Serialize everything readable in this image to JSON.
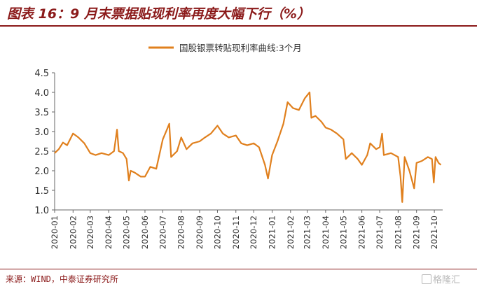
{
  "header": {
    "title": "图表 16：9 月末票据贴现利率再度大幅下行（%）"
  },
  "footer": {
    "source": "来源：WIND，中泰证券研究所",
    "watermark": "格隆汇"
  },
  "colors": {
    "line": "#e0801e",
    "accent": "#8b1a1a",
    "axis": "#666666"
  },
  "chart_data": {
    "type": "line",
    "title": "",
    "xlabel": "",
    "ylabel": "",
    "ylim": [
      1.0,
      4.5
    ],
    "yticks": [
      "1.0",
      "1.5",
      "2.0",
      "2.5",
      "3.0",
      "3.5",
      "4.0",
      "4.5"
    ],
    "xticks": [
      "2020-01",
      "2020-02",
      "2020-03",
      "2020-04",
      "2020-05",
      "2020-06",
      "2020-07",
      "2020-08",
      "2020-09",
      "2020-10",
      "2020-11",
      "2020-12",
      "2021-01",
      "2021-02",
      "2021-03",
      "2021-04",
      "2021-05",
      "2021-06",
      "2021-07",
      "2021-08",
      "2021-09",
      "2021-10"
    ],
    "legend_position": "top-center",
    "grid": false,
    "series": [
      {
        "name": "国股银票转贴现利率曲线:3个月",
        "points": [
          [
            "2020-01-01",
            2.45
          ],
          [
            "2020-01-08",
            2.55
          ],
          [
            "2020-01-15",
            2.72
          ],
          [
            "2020-01-22",
            2.65
          ],
          [
            "2020-02-01",
            2.95
          ],
          [
            "2020-02-10",
            2.85
          ],
          [
            "2020-02-20",
            2.7
          ],
          [
            "2020-03-01",
            2.45
          ],
          [
            "2020-03-10",
            2.4
          ],
          [
            "2020-03-20",
            2.45
          ],
          [
            "2020-04-01",
            2.4
          ],
          [
            "2020-04-10",
            2.5
          ],
          [
            "2020-04-15",
            3.05
          ],
          [
            "2020-04-18",
            2.5
          ],
          [
            "2020-04-25",
            2.45
          ],
          [
            "2020-05-01",
            2.3
          ],
          [
            "2020-05-05",
            1.75
          ],
          [
            "2020-05-08",
            2.0
          ],
          [
            "2020-05-15",
            1.95
          ],
          [
            "2020-05-25",
            1.85
          ],
          [
            "2020-06-01",
            1.85
          ],
          [
            "2020-06-10",
            2.1
          ],
          [
            "2020-06-20",
            2.05
          ],
          [
            "2020-07-01",
            2.8
          ],
          [
            "2020-07-08",
            3.05
          ],
          [
            "2020-07-12",
            3.2
          ],
          [
            "2020-07-15",
            2.35
          ],
          [
            "2020-07-25",
            2.5
          ],
          [
            "2020-08-01",
            2.85
          ],
          [
            "2020-08-10",
            2.55
          ],
          [
            "2020-08-20",
            2.7
          ],
          [
            "2020-09-01",
            2.75
          ],
          [
            "2020-09-10",
            2.85
          ],
          [
            "2020-09-20",
            2.95
          ],
          [
            "2020-10-01",
            3.15
          ],
          [
            "2020-10-10",
            2.95
          ],
          [
            "2020-10-20",
            2.85
          ],
          [
            "2020-11-01",
            2.9
          ],
          [
            "2020-11-10",
            2.7
          ],
          [
            "2020-11-20",
            2.65
          ],
          [
            "2020-12-01",
            2.7
          ],
          [
            "2020-12-10",
            2.6
          ],
          [
            "2020-12-20",
            2.15
          ],
          [
            "2020-12-25",
            1.8
          ],
          [
            "2021-01-01",
            2.4
          ],
          [
            "2021-01-10",
            2.75
          ],
          [
            "2021-01-20",
            3.2
          ],
          [
            "2021-01-27",
            3.75
          ],
          [
            "2021-02-05",
            3.6
          ],
          [
            "2021-02-15",
            3.55
          ],
          [
            "2021-02-25",
            3.85
          ],
          [
            "2021-03-05",
            4.0
          ],
          [
            "2021-03-08",
            3.35
          ],
          [
            "2021-03-15",
            3.4
          ],
          [
            "2021-03-25",
            3.25
          ],
          [
            "2021-04-01",
            3.1
          ],
          [
            "2021-04-10",
            3.05
          ],
          [
            "2021-04-20",
            2.95
          ],
          [
            "2021-05-01",
            2.8
          ],
          [
            "2021-05-05",
            2.3
          ],
          [
            "2021-05-15",
            2.45
          ],
          [
            "2021-05-25",
            2.3
          ],
          [
            "2021-06-01",
            2.15
          ],
          [
            "2021-06-10",
            2.4
          ],
          [
            "2021-06-15",
            2.7
          ],
          [
            "2021-06-25",
            2.55
          ],
          [
            "2021-07-01",
            2.6
          ],
          [
            "2021-07-05",
            2.95
          ],
          [
            "2021-07-08",
            2.4
          ],
          [
            "2021-07-20",
            2.45
          ],
          [
            "2021-08-01",
            2.35
          ],
          [
            "2021-08-05",
            1.85
          ],
          [
            "2021-08-08",
            1.2
          ],
          [
            "2021-08-12",
            2.35
          ],
          [
            "2021-08-20",
            2.0
          ],
          [
            "2021-08-28",
            1.55
          ],
          [
            "2021-09-01",
            2.2
          ],
          [
            "2021-09-10",
            2.25
          ],
          [
            "2021-09-20",
            2.35
          ],
          [
            "2021-09-27",
            2.3
          ],
          [
            "2021-09-30",
            1.7
          ],
          [
            "2021-10-03",
            2.35
          ],
          [
            "2021-10-08",
            2.2
          ],
          [
            "2021-10-12",
            2.15
          ]
        ]
      }
    ]
  }
}
